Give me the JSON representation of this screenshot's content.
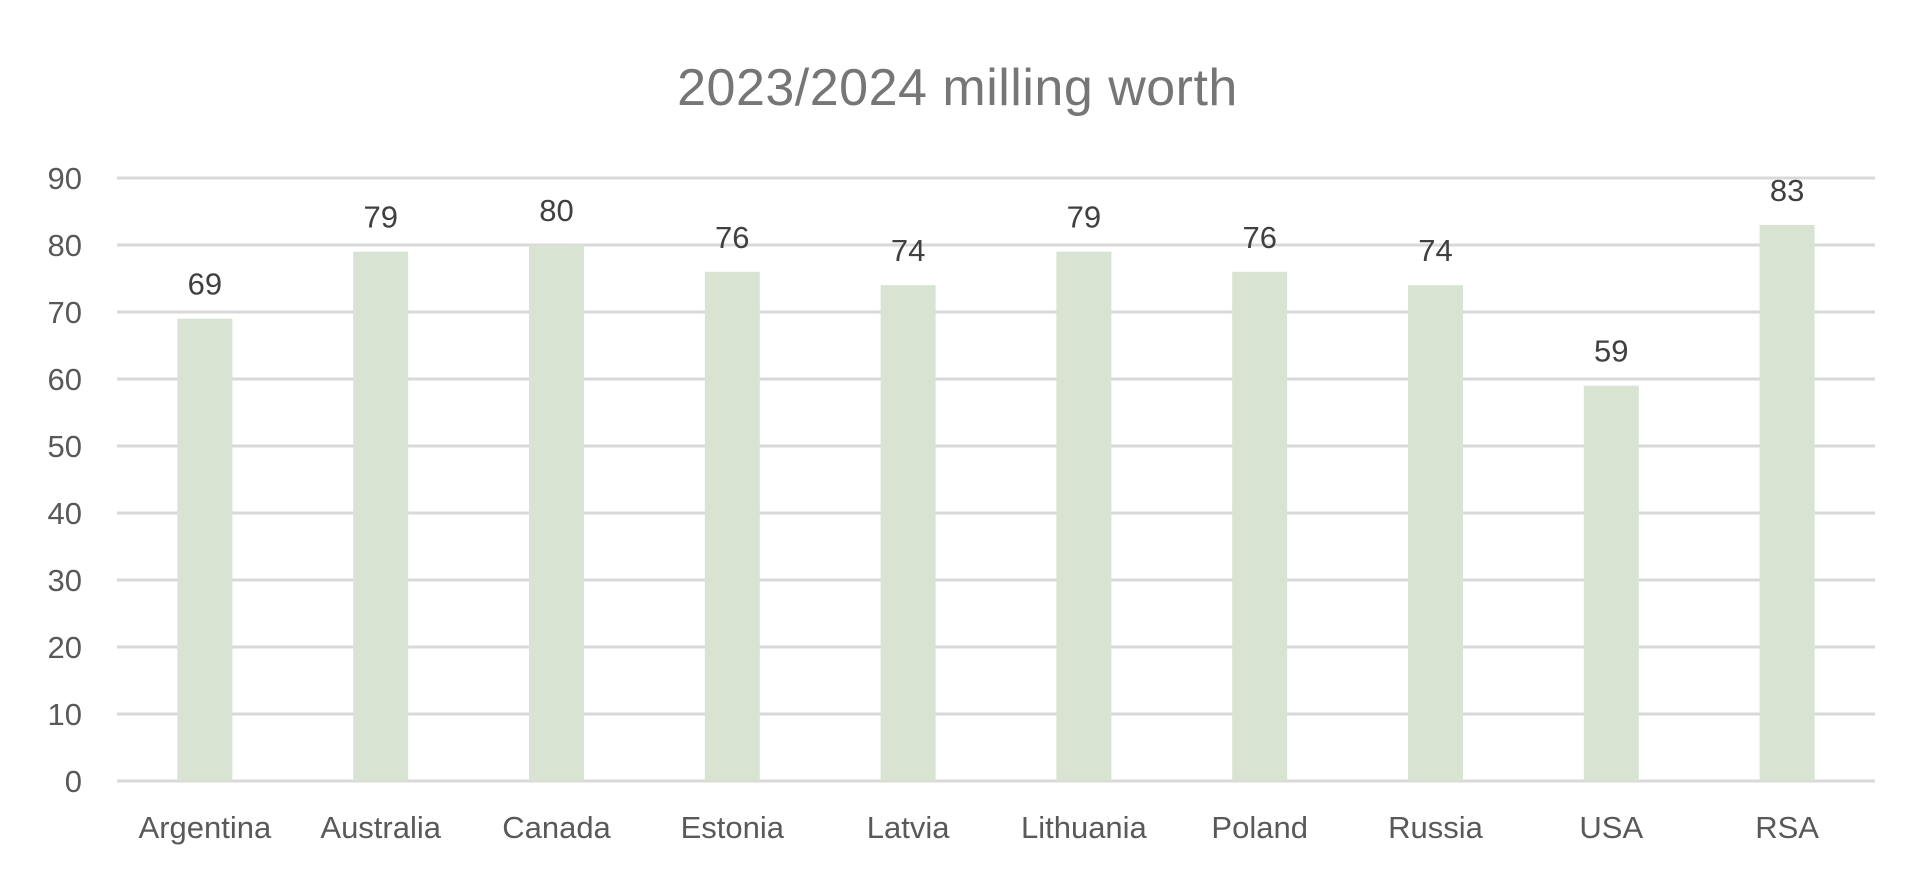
{
  "chart_data": {
    "type": "bar",
    "title": "2023/2024 milling worth",
    "xlabel": "",
    "ylabel": "",
    "categories": [
      "Argentina",
      "Australia",
      "Canada",
      "Estonia",
      "Latvia",
      "Lithuania",
      "Poland",
      "Russia",
      "USA",
      "RSA"
    ],
    "values": [
      69,
      79,
      80,
      76,
      74,
      79,
      76,
      74,
      59,
      83
    ],
    "ylim": [
      0,
      90
    ],
    "yticks": [
      0,
      10,
      20,
      30,
      40,
      50,
      60,
      70,
      80,
      90
    ],
    "grid": true,
    "data_labels": true,
    "legend": "none",
    "colors": {
      "bar": "#d9e3d2",
      "grid": "#d9d9d9",
      "title": "#767676",
      "axis_text": "#595959",
      "data_label": "#404040"
    }
  }
}
